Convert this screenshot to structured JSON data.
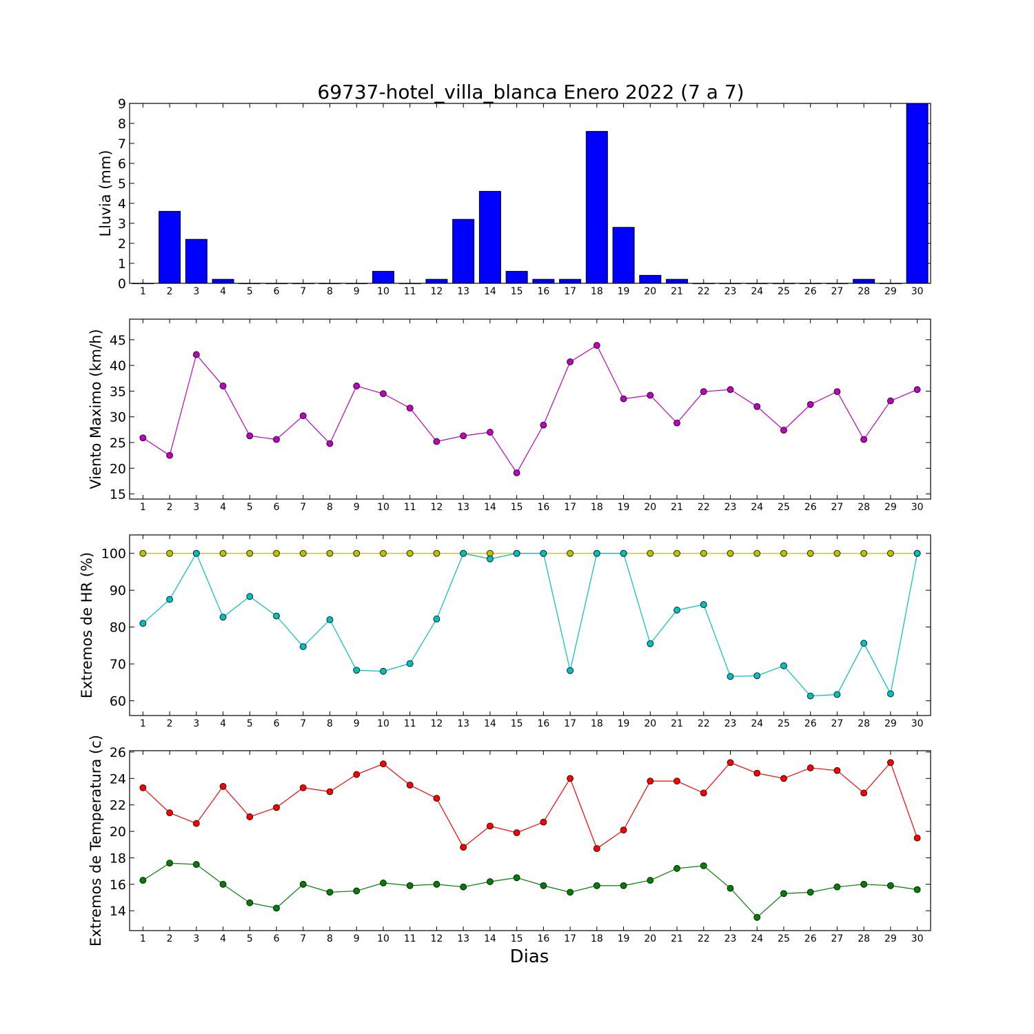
{
  "chart_data": [
    {
      "type": "bar",
      "title": "69737-hotel_villa_blanca Enero 2022  (7 a 7)",
      "ylabel": "Lluvia (mm)",
      "xlabel": "",
      "x": [
        1,
        2,
        3,
        4,
        5,
        6,
        7,
        8,
        9,
        10,
        11,
        12,
        13,
        14,
        15,
        16,
        17,
        18,
        19,
        20,
        21,
        22,
        23,
        24,
        25,
        26,
        27,
        28,
        29,
        30
      ],
      "values": [
        0,
        3.6,
        2.2,
        0.2,
        0,
        0,
        0,
        0,
        0,
        0.6,
        0,
        0.2,
        3.2,
        4.6,
        0.6,
        0.2,
        0.2,
        7.6,
        2.8,
        0.4,
        0.2,
        0,
        0,
        0,
        0,
        0,
        0,
        0.2,
        0,
        9.0
      ],
      "ylim": [
        0,
        9
      ],
      "yticks": [
        0,
        1,
        2,
        3,
        4,
        5,
        6,
        7,
        8,
        9
      ],
      "color": "#0000ff"
    },
    {
      "type": "line",
      "title": "",
      "ylabel": "Viento Maximo (km/h)",
      "xlabel": "",
      "x": [
        1,
        2,
        3,
        4,
        5,
        6,
        7,
        8,
        9,
        10,
        11,
        12,
        13,
        14,
        15,
        16,
        17,
        18,
        19,
        20,
        21,
        22,
        23,
        24,
        25,
        26,
        27,
        28,
        29,
        30
      ],
      "ylim": [
        14,
        49
      ],
      "yticks": [
        15,
        20,
        25,
        30,
        35,
        40,
        45
      ],
      "series": [
        {
          "values": [
            25.9,
            22.5,
            42.1,
            36.0,
            26.3,
            25.6,
            30.2,
            24.8,
            36.0,
            34.5,
            31.7,
            25.2,
            26.3,
            27.0,
            19.1,
            28.4,
            40.7,
            43.9,
            33.5,
            34.2,
            28.8,
            34.9,
            35.3,
            32.0,
            27.4,
            32.4,
            34.9,
            25.6,
            33.1,
            35.3
          ],
          "color": "#bf00bf"
        }
      ]
    },
    {
      "type": "line",
      "title": "",
      "ylabel": "Extremos de HR (%)",
      "xlabel": "",
      "x": [
        1,
        2,
        3,
        4,
        5,
        6,
        7,
        8,
        9,
        10,
        11,
        12,
        13,
        14,
        15,
        16,
        17,
        18,
        19,
        20,
        21,
        22,
        23,
        24,
        25,
        26,
        27,
        28,
        29,
        30
      ],
      "ylim": [
        56,
        105
      ],
      "yticks": [
        60,
        70,
        80,
        90,
        100
      ],
      "series": [
        {
          "values": [
            100,
            100,
            100,
            100,
            100,
            100,
            100,
            100,
            100,
            100,
            100,
            100,
            100,
            100,
            100,
            100,
            100,
            100,
            100,
            100,
            100,
            100,
            100,
            100,
            100,
            100,
            100,
            100,
            100,
            100
          ],
          "color": "#bfbf00"
        },
        {
          "values": [
            81,
            87.5,
            100,
            82.7,
            88.3,
            83,
            74.7,
            82,
            68.3,
            68,
            70.1,
            82.2,
            100,
            98.5,
            100,
            100,
            68.2,
            100,
            100,
            75.5,
            84.6,
            86.1,
            66.6,
            66.8,
            69.5,
            61.3,
            61.7,
            75.6,
            61.9,
            100
          ],
          "color": "#00bfbf"
        }
      ]
    },
    {
      "type": "line",
      "title": "",
      "ylabel": "Extremos de Temperatura (c)",
      "xlabel": "Dias",
      "x": [
        1,
        2,
        3,
        4,
        5,
        6,
        7,
        8,
        9,
        10,
        11,
        12,
        13,
        14,
        15,
        16,
        17,
        18,
        19,
        20,
        21,
        22,
        23,
        24,
        25,
        26,
        27,
        28,
        29,
        30
      ],
      "ylim": [
        12.5,
        26.1
      ],
      "yticks": [
        14,
        16,
        18,
        20,
        22,
        24,
        26
      ],
      "series": [
        {
          "values": [
            23.3,
            21.4,
            20.6,
            23.4,
            21.1,
            21.8,
            23.3,
            23.0,
            24.3,
            25.1,
            23.5,
            22.5,
            18.8,
            20.4,
            19.9,
            20.7,
            24.0,
            18.7,
            20.1,
            23.8,
            23.8,
            22.9,
            25.2,
            24.4,
            24.0,
            24.8,
            24.6,
            22.9,
            25.2,
            19.5
          ],
          "color": "#ff0000"
        },
        {
          "values": [
            16.3,
            17.6,
            17.5,
            16.0,
            14.6,
            14.2,
            16.0,
            15.4,
            15.5,
            16.1,
            15.9,
            16.0,
            15.8,
            16.2,
            16.5,
            15.9,
            15.4,
            15.9,
            15.9,
            16.3,
            17.2,
            17.4,
            15.7,
            13.5,
            15.3,
            15.4,
            15.8,
            16.0,
            15.9,
            15.6
          ],
          "color": "#008000"
        }
      ]
    }
  ]
}
